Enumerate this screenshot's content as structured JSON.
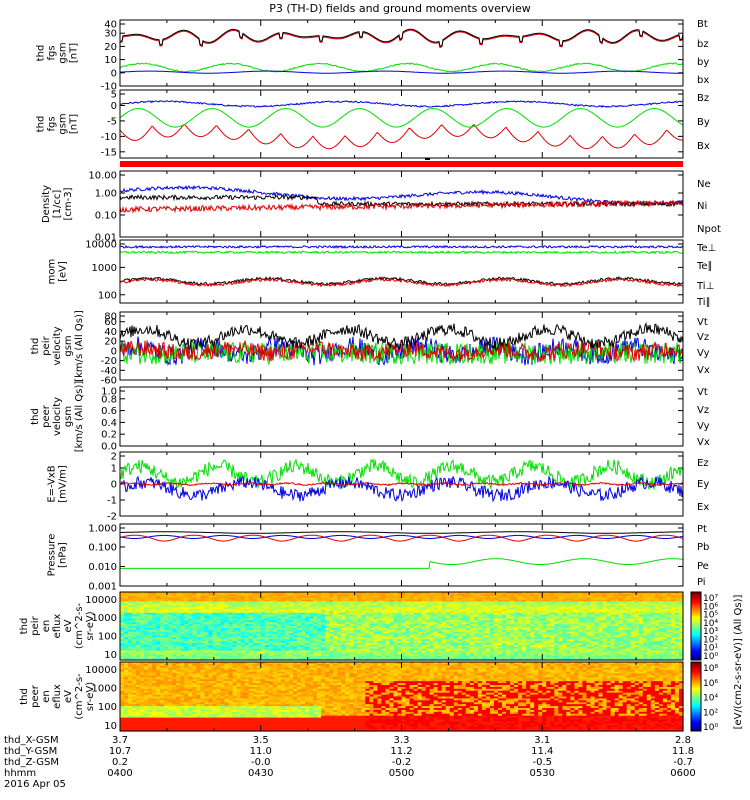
{
  "title": "P3 (TH-D) fields and ground moments overview",
  "colors": {
    "black": "#000000",
    "red": "#e00000",
    "green": "#00e000",
    "blue": "#0000e0"
  },
  "chart_data": [
    {
      "type": "line",
      "panel": "fgs-gsm",
      "ylabel": [
        "thd",
        "fgs",
        "gsm",
        "[nT]"
      ],
      "ylim": [
        -10,
        40
      ],
      "yticks": [
        "40",
        "30",
        "20",
        "10",
        "0",
        "-10"
      ],
      "legend": [
        {
          "name": "Bt",
          "color": "black"
        },
        {
          "name": "bz",
          "color": "red"
        },
        {
          "name": "by",
          "color": "green"
        },
        {
          "name": "bx",
          "color": "blue"
        }
      ],
      "series_approx": [
        {
          "name": "Bt",
          "level": 28,
          "amp": 6
        },
        {
          "name": "bz",
          "level": 27,
          "amp": 6
        },
        {
          "name": "by",
          "level": 5,
          "amp": 3
        },
        {
          "name": "bx",
          "level": 0,
          "amp": 1
        }
      ]
    },
    {
      "type": "line",
      "panel": "fgs-gsm-detrended",
      "ylabel": [
        "thd",
        "fgs",
        "gsm",
        "[nT]"
      ],
      "ylim": [
        -17,
        5
      ],
      "yticks": [
        "5",
        "0",
        "-5",
        "-10",
        "-15"
      ],
      "legend": [
        {
          "name": "Bz",
          "color": "red"
        },
        {
          "name": "By",
          "color": "green"
        },
        {
          "name": "Bx",
          "color": "blue"
        }
      ],
      "series_approx": [
        {
          "name": "Bz",
          "level": -8,
          "amp": 5
        },
        {
          "name": "By",
          "level": -4,
          "amp": 3
        },
        {
          "name": "Bx",
          "level": 0.5,
          "amp": 1
        }
      ]
    },
    {
      "type": "line",
      "panel": "density",
      "ylabel": [
        "Density",
        "[1/cc]",
        "[cm-3]"
      ],
      "scale": "log",
      "ylim": [
        0.01,
        10
      ],
      "yticks": [
        "10.00",
        "1.00",
        "0.10",
        "0.01"
      ],
      "legend": [
        {
          "name": "Ne",
          "color": "red"
        },
        {
          "name": "Ni",
          "color": "black"
        },
        {
          "name": "Npot",
          "color": "blue"
        }
      ]
    },
    {
      "type": "line",
      "panel": "temperature",
      "ylabel": [
        "mom",
        "[eV]"
      ],
      "scale": "log",
      "ylim": [
        50,
        10000
      ],
      "yticks": [
        "10000",
        "1000",
        "100"
      ],
      "legend": [
        {
          "name": "Te⊥",
          "color": "red"
        },
        {
          "name": "Te∥",
          "color": "black"
        },
        {
          "name": "Ti⊥",
          "color": "blue"
        },
        {
          "name": "Ti∥",
          "color": "green"
        }
      ]
    },
    {
      "type": "line",
      "panel": "peir-velocity",
      "ylabel": [
        "thd",
        "peir",
        "velocity",
        "gsm",
        "[km/s (All Qs)]"
      ],
      "ylim": [
        -60,
        80
      ],
      "yticks": [
        "80",
        "60",
        "40",
        "20",
        "0",
        "-20",
        "-40",
        "-60"
      ],
      "legend": [
        {
          "name": "Vt",
          "color": "black"
        },
        {
          "name": "Vz",
          "color": "red"
        },
        {
          "name": "Vy",
          "color": "green"
        },
        {
          "name": "Vx",
          "color": "blue"
        }
      ]
    },
    {
      "type": "line",
      "panel": "peer-velocity",
      "ylabel": [
        "thd",
        "peer",
        "velocity",
        "gsm",
        "[km/s (All Qs)]"
      ],
      "ylim": [
        0,
        1
      ],
      "yticks": [
        "1.0",
        "0.8",
        "0.6",
        "0.4",
        "0.2",
        "0.0"
      ],
      "legend": [
        {
          "name": "Vt",
          "color": "black"
        },
        {
          "name": "Vz",
          "color": "red"
        },
        {
          "name": "Vy",
          "color": "green"
        },
        {
          "name": "Vx",
          "color": "blue"
        }
      ]
    },
    {
      "type": "line",
      "panel": "efield",
      "ylabel": [
        "E=-VxB",
        "[mV/m]"
      ],
      "ylim": [
        -2,
        2
      ],
      "yticks": [
        "2",
        "1",
        "0",
        "-1",
        "-2"
      ],
      "legend": [
        {
          "name": "Ez",
          "color": "red"
        },
        {
          "name": "Ey",
          "color": "green"
        },
        {
          "name": "Ex",
          "color": "blue"
        }
      ]
    },
    {
      "type": "line",
      "panel": "pressure",
      "ylabel": [
        "Pressure",
        "[nPa]"
      ],
      "scale": "log",
      "ylim": [
        0.001,
        1.5
      ],
      "yticks": [
        "1.000",
        "0.100",
        "0.010",
        "0.001"
      ],
      "legend": [
        {
          "name": "Pt",
          "color": "black"
        },
        {
          "name": "Pb",
          "color": "red"
        },
        {
          "name": "Pe",
          "color": "green"
        },
        {
          "name": "Pi",
          "color": "blue"
        }
      ]
    },
    {
      "type": "heatmap",
      "panel": "peir-en-eflux",
      "ylabel": [
        "thd",
        "peir",
        "en",
        "eflux",
        "eV",
        "(cm^2-s-",
        "sr-eV)"
      ],
      "scale": "log",
      "ylim": [
        5,
        25000
      ],
      "yticks": [
        "10000",
        "1000",
        "100",
        "10"
      ]
    },
    {
      "type": "heatmap",
      "panel": "peer-en-eflux",
      "ylabel": [
        "thd",
        "peer",
        "en",
        "eflux",
        "eV",
        "(cm^2-s-",
        "sr-eV)"
      ],
      "scale": "log",
      "ylim": [
        5,
        25000
      ],
      "yticks": [
        "10000",
        "1000",
        "100",
        "10"
      ]
    }
  ],
  "colorbar": {
    "label": "[eV/(cm2-s-sr-eV)] (All Qs)]",
    "ticks_upper": [
      "10⁷",
      "10⁶",
      "10⁵",
      "10⁴",
      "10³",
      "10²",
      "10¹",
      "10⁰"
    ],
    "ticks_lower": [
      "10⁸",
      "10⁶",
      "10⁴",
      "10²",
      "10⁰"
    ]
  },
  "x_axis": {
    "row_labels": [
      "thd_X-GSM",
      "thd_Y-GSM",
      "thd_Z-GSM",
      "hhmm",
      "2016 Apr 05"
    ],
    "columns": [
      {
        "x": "3.7",
        "y": "10.7",
        "z": "0.2",
        "hhmm": "0400"
      },
      {
        "x": "3.5",
        "y": "11.0",
        "z": "-0.0",
        "hhmm": "0430"
      },
      {
        "x": "3.3",
        "y": "11.2",
        "z": "-0.2",
        "hhmm": "0500"
      },
      {
        "x": "3.1",
        "y": "11.4",
        "z": "-0.5",
        "hhmm": "0530"
      },
      {
        "x": "2.8",
        "y": "11.8",
        "z": "-0.7",
        "hhmm": "0600"
      }
    ]
  }
}
